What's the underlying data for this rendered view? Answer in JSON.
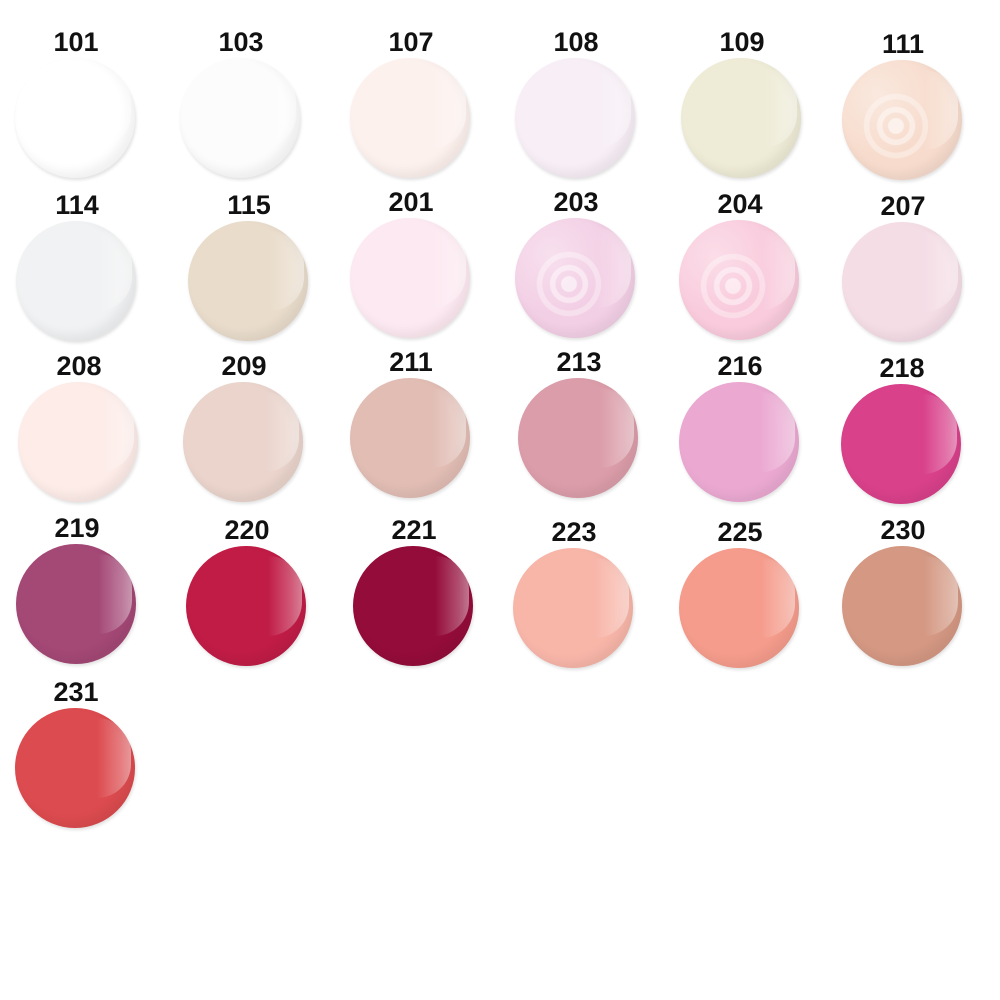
{
  "swatches": [
    {
      "code": "101",
      "color": "#ffffff",
      "finish": "cream"
    },
    {
      "code": "103",
      "color": "#fcfcfc",
      "finish": "cream"
    },
    {
      "code": "107",
      "color": "#fdf1ee",
      "finish": "cream"
    },
    {
      "code": "108",
      "color": "#f7eef6",
      "finish": "cream"
    },
    {
      "code": "109",
      "color": "#eeebd6",
      "finish": "cream"
    },
    {
      "code": "111",
      "color": "#f7dccd",
      "finish": "pearl"
    },
    {
      "code": "114",
      "color": "#f1f2f3",
      "finish": "cream"
    },
    {
      "code": "115",
      "color": "#e9dccb",
      "finish": "cream"
    },
    {
      "code": "201",
      "color": "#fde9f1",
      "finish": "cream"
    },
    {
      "code": "203",
      "color": "#f3cfe5",
      "finish": "pearl"
    },
    {
      "code": "204",
      "color": "#f9cbdc",
      "finish": "pearl"
    },
    {
      "code": "207",
      "color": "#f5dde6",
      "finish": "cream"
    },
    {
      "code": "208",
      "color": "#fdece8",
      "finish": "cream"
    },
    {
      "code": "209",
      "color": "#ead4cc",
      "finish": "cream"
    },
    {
      "code": "211",
      "color": "#e1bdb4",
      "finish": "cream"
    },
    {
      "code": "213",
      "color": "#db9da9",
      "finish": "cream"
    },
    {
      "code": "216",
      "color": "#eba9d2",
      "finish": "cream"
    },
    {
      "code": "218",
      "color": "#d9418b",
      "finish": "cream"
    },
    {
      "code": "219",
      "color": "#a44876",
      "finish": "cream"
    },
    {
      "code": "220",
      "color": "#c01c46",
      "finish": "cream"
    },
    {
      "code": "221",
      "color": "#940c3a",
      "finish": "cream"
    },
    {
      "code": "223",
      "color": "#f8b6a9",
      "finish": "cream"
    },
    {
      "code": "225",
      "color": "#f59c8c",
      "finish": "cream"
    },
    {
      "code": "230",
      "color": "#d49883",
      "finish": "cream"
    },
    {
      "code": "231",
      "color": "#dc4b4f",
      "finish": "cream"
    }
  ]
}
